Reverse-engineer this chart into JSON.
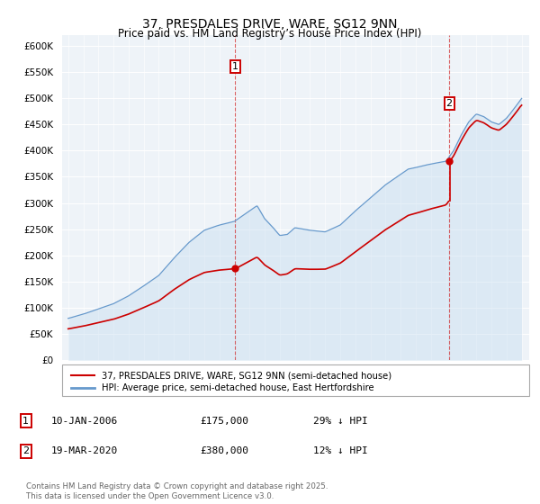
{
  "title": "37, PRESDALES DRIVE, WARE, SG12 9NN",
  "subtitle": "Price paid vs. HM Land Registry’s House Price Index (HPI)",
  "legend_line1": "37, PRESDALES DRIVE, WARE, SG12 9NN (semi-detached house)",
  "legend_line2": "HPI: Average price, semi-detached house, East Hertfordshire",
  "sale1_date": "10-JAN-2006",
  "sale1_price": "£175,000",
  "sale1_hpi": "29% ↓ HPI",
  "sale2_date": "19-MAR-2020",
  "sale2_price": "£380,000",
  "sale2_hpi": "12% ↓ HPI",
  "footnote": "Contains HM Land Registry data © Crown copyright and database right 2025.\nThis data is licensed under the Open Government Licence v3.0.",
  "sale_color": "#cc0000",
  "hpi_color": "#6699cc",
  "hpi_fill_color": "#ddeeff",
  "ylim_min": 0,
  "ylim_max": 620000,
  "yticks": [
    0,
    50000,
    100000,
    150000,
    200000,
    250000,
    300000,
    350000,
    400000,
    450000,
    500000,
    550000,
    600000
  ],
  "ytick_labels": [
    "£0",
    "£50K",
    "£100K",
    "£150K",
    "£200K",
    "£250K",
    "£300K",
    "£350K",
    "£400K",
    "£450K",
    "£500K",
    "£550K",
    "£600K"
  ],
  "hpi_monthly_x": [
    1995.0,
    1995.083,
    1995.167,
    1995.25,
    1995.333,
    1995.417,
    1995.5,
    1995.583,
    1995.667,
    1995.75,
    1995.833,
    1995.917,
    1996.0,
    1996.083,
    1996.167,
    1996.25,
    1996.333,
    1996.417,
    1996.5,
    1996.583,
    1996.667,
    1996.75,
    1996.833,
    1996.917,
    1997.0,
    1997.083,
    1997.167,
    1997.25,
    1997.333,
    1997.417,
    1997.5,
    1997.583,
    1997.667,
    1997.75,
    1997.833,
    1997.917,
    1998.0,
    1998.083,
    1998.167,
    1998.25,
    1998.333,
    1998.417,
    1998.5,
    1998.583,
    1998.667,
    1998.75,
    1998.833,
    1998.917,
    1999.0,
    1999.083,
    1999.167,
    1999.25,
    1999.333,
    1999.417,
    1999.5,
    1999.583,
    1999.667,
    1999.75,
    1999.833,
    1999.917,
    2000.0,
    2000.083,
    2000.167,
    2000.25,
    2000.333,
    2000.417,
    2000.5,
    2000.583,
    2000.667,
    2000.75,
    2000.833,
    2000.917,
    2001.0,
    2001.083,
    2001.167,
    2001.25,
    2001.333,
    2001.417,
    2001.5,
    2001.583,
    2001.667,
    2001.75,
    2001.833,
    2001.917,
    2002.0,
    2002.083,
    2002.167,
    2002.25,
    2002.333,
    2002.417,
    2002.5,
    2002.583,
    2002.667,
    2002.75,
    2002.833,
    2002.917,
    2003.0,
    2003.083,
    2003.167,
    2003.25,
    2003.333,
    2003.417,
    2003.5,
    2003.583,
    2003.667,
    2003.75,
    2003.833,
    2003.917,
    2004.0,
    2004.083,
    2004.167,
    2004.25,
    2004.333,
    2004.417,
    2004.5,
    2004.583,
    2004.667,
    2004.75,
    2004.833,
    2004.917,
    2005.0,
    2005.083,
    2005.167,
    2005.25,
    2005.333,
    2005.417,
    2005.5,
    2005.583,
    2005.667,
    2005.75,
    2005.833,
    2005.917,
    2006.0,
    2006.083,
    2006.167,
    2006.25,
    2006.333,
    2006.417,
    2006.5,
    2006.583,
    2006.667,
    2006.75,
    2006.833,
    2006.917,
    2007.0,
    2007.083,
    2007.167,
    2007.25,
    2007.333,
    2007.417,
    2007.5,
    2007.583,
    2007.667,
    2007.75,
    2007.833,
    2007.917,
    2008.0,
    2008.083,
    2008.167,
    2008.25,
    2008.333,
    2008.417,
    2008.5,
    2008.583,
    2008.667,
    2008.75,
    2008.833,
    2008.917,
    2009.0,
    2009.083,
    2009.167,
    2009.25,
    2009.333,
    2009.417,
    2009.5,
    2009.583,
    2009.667,
    2009.75,
    2009.833,
    2009.917,
    2010.0,
    2010.083,
    2010.167,
    2010.25,
    2010.333,
    2010.417,
    2010.5,
    2010.583,
    2010.667,
    2010.75,
    2010.833,
    2010.917,
    2011.0,
    2011.083,
    2011.167,
    2011.25,
    2011.333,
    2011.417,
    2011.5,
    2011.583,
    2011.667,
    2011.75,
    2011.833,
    2011.917,
    2012.0,
    2012.083,
    2012.167,
    2012.25,
    2012.333,
    2012.417,
    2012.5,
    2012.583,
    2012.667,
    2012.75,
    2012.833,
    2012.917,
    2013.0,
    2013.083,
    2013.167,
    2013.25,
    2013.333,
    2013.417,
    2013.5,
    2013.583,
    2013.667,
    2013.75,
    2013.833,
    2013.917,
    2014.0,
    2014.083,
    2014.167,
    2014.25,
    2014.333,
    2014.417,
    2014.5,
    2014.583,
    2014.667,
    2014.75,
    2014.833,
    2014.917,
    2015.0,
    2015.083,
    2015.167,
    2015.25,
    2015.333,
    2015.417,
    2015.5,
    2015.583,
    2015.667,
    2015.75,
    2015.833,
    2015.917,
    2016.0,
    2016.083,
    2016.167,
    2016.25,
    2016.333,
    2016.417,
    2016.5,
    2016.583,
    2016.667,
    2016.75,
    2016.833,
    2016.917,
    2017.0,
    2017.083,
    2017.167,
    2017.25,
    2017.333,
    2017.417,
    2017.5,
    2017.583,
    2017.667,
    2017.75,
    2017.833,
    2017.917,
    2018.0,
    2018.083,
    2018.167,
    2018.25,
    2018.333,
    2018.417,
    2018.5,
    2018.583,
    2018.667,
    2018.75,
    2018.833,
    2018.917,
    2019.0,
    2019.083,
    2019.167,
    2019.25,
    2019.333,
    2019.417,
    2019.5,
    2019.583,
    2019.667,
    2019.75,
    2019.833,
    2019.917,
    2020.0,
    2020.083,
    2020.167,
    2020.25,
    2020.333,
    2020.417,
    2020.5,
    2020.583,
    2020.667,
    2020.75,
    2020.833,
    2020.917,
    2021.0,
    2021.083,
    2021.167,
    2021.25,
    2021.333,
    2021.417,
    2021.5,
    2021.583,
    2021.667,
    2021.75,
    2021.833,
    2021.917,
    2022.0,
    2022.083,
    2022.167,
    2022.25,
    2022.333,
    2022.417,
    2022.5,
    2022.583,
    2022.667,
    2022.75,
    2022.833,
    2022.917,
    2023.0,
    2023.083,
    2023.167,
    2023.25,
    2023.333,
    2023.417,
    2023.5,
    2023.583,
    2023.667,
    2023.75,
    2023.833,
    2023.917,
    2024.0,
    2024.083,
    2024.167,
    2024.25,
    2024.333,
    2024.417,
    2024.5,
    2024.583,
    2024.667,
    2024.75,
    2024.833,
    2024.917,
    2025.0
  ],
  "sale1_x": 2006.04,
  "sale1_y": 175000,
  "sale2_x": 2020.21,
  "sale2_y": 380000,
  "vline1_x": 2006.04,
  "vline2_x": 2020.21,
  "xmin": 1994.6,
  "xmax": 2025.5,
  "background_color": "#f0f4f8"
}
